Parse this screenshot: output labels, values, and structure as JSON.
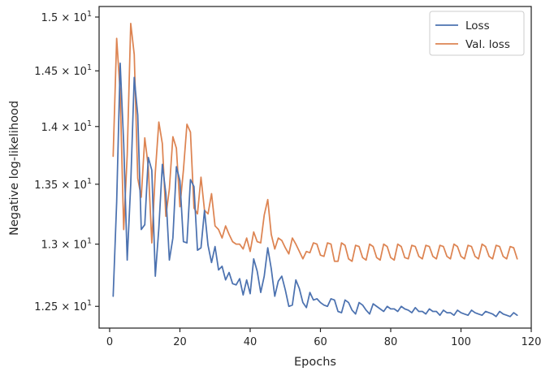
{
  "chart_data": {
    "type": "line",
    "xlabel": "Epochs",
    "ylabel": "Negative log-likelihood",
    "yscale": "log",
    "xlim": [
      -3,
      120
    ],
    "ylim": [
      12.33,
      15.1
    ],
    "xticks": [
      0,
      20,
      40,
      60,
      80,
      100,
      120
    ],
    "yticks": [
      12.5,
      13.0,
      13.5,
      14.0,
      14.5,
      15.0
    ],
    "ytick_labels": [
      "1.25 × 10",
      "1.3 × 10",
      "1.35 × 10",
      "1.4 × 10",
      "1.45 × 10",
      "1.5 × 10"
    ],
    "ytick_exponent": "1",
    "grid": false,
    "legend": "top-right",
    "x": [
      1,
      2,
      3,
      4,
      5,
      6,
      7,
      8,
      9,
      10,
      11,
      12,
      13,
      14,
      15,
      16,
      17,
      18,
      19,
      20,
      21,
      22,
      23,
      24,
      25,
      26,
      27,
      28,
      29,
      30,
      31,
      32,
      33,
      34,
      35,
      36,
      37,
      38,
      39,
      40,
      41,
      42,
      43,
      44,
      45,
      46,
      47,
      48,
      49,
      50,
      51,
      52,
      53,
      54,
      55,
      56,
      57,
      58,
      59,
      60,
      61,
      62,
      63,
      64,
      65,
      66,
      67,
      68,
      69,
      70,
      71,
      72,
      73,
      74,
      75,
      76,
      77,
      78,
      79,
      80,
      81,
      82,
      83,
      84,
      85,
      86,
      87,
      88,
      89,
      90,
      91,
      92,
      93,
      94,
      95,
      96,
      97,
      98,
      99,
      100,
      101,
      102,
      103,
      104,
      105,
      106,
      107,
      108,
      109,
      110,
      111,
      112,
      113,
      114,
      115,
      116
    ],
    "series": [
      {
        "name": "Loss",
        "color": "#4c72b0",
        "values": [
          12.58,
          13.35,
          14.57,
          13.85,
          12.87,
          13.5,
          14.44,
          14.1,
          13.12,
          13.16,
          13.73,
          13.62,
          12.74,
          13.13,
          13.67,
          13.42,
          12.87,
          13.05,
          13.65,
          13.53,
          13.02,
          13.01,
          13.54,
          13.48,
          12.95,
          12.97,
          13.28,
          12.99,
          12.85,
          12.98,
          12.79,
          12.82,
          12.71,
          12.77,
          12.68,
          12.67,
          12.72,
          12.59,
          12.71,
          12.6,
          12.88,
          12.78,
          12.61,
          12.74,
          12.97,
          12.8,
          12.58,
          12.7,
          12.74,
          12.63,
          12.5,
          12.51,
          12.71,
          12.64,
          12.53,
          12.49,
          12.61,
          12.55,
          12.56,
          12.53,
          12.51,
          12.5,
          12.56,
          12.55,
          12.46,
          12.45,
          12.55,
          12.53,
          12.47,
          12.44,
          12.53,
          12.51,
          12.47,
          12.44,
          12.52,
          12.5,
          12.48,
          12.46,
          12.5,
          12.48,
          12.48,
          12.46,
          12.5,
          12.48,
          12.47,
          12.45,
          12.49,
          12.46,
          12.46,
          12.44,
          12.48,
          12.46,
          12.46,
          12.43,
          12.47,
          12.45,
          12.45,
          12.43,
          12.47,
          12.45,
          12.44,
          12.43,
          12.47,
          12.45,
          12.44,
          12.43,
          12.46,
          12.45,
          12.44,
          12.42,
          12.46,
          12.44,
          12.43,
          12.42,
          12.45,
          12.43
        ]
      },
      {
        "name": "Val. loss",
        "color": "#dd8452",
        "values": [
          13.74,
          14.8,
          14.3,
          13.12,
          13.75,
          14.94,
          14.65,
          13.55,
          13.39,
          13.9,
          13.65,
          13.01,
          13.6,
          14.04,
          13.85,
          13.23,
          13.46,
          13.91,
          13.81,
          13.31,
          13.62,
          14.02,
          13.95,
          13.3,
          13.25,
          13.56,
          13.28,
          13.25,
          13.42,
          13.15,
          13.12,
          13.05,
          13.15,
          13.08,
          13.02,
          13.0,
          13.0,
          12.96,
          13.05,
          12.94,
          13.1,
          13.02,
          13.01,
          13.24,
          13.37,
          13.08,
          12.96,
          13.05,
          13.03,
          12.97,
          12.92,
          13.05,
          13.0,
          12.94,
          12.88,
          12.94,
          12.93,
          13.01,
          13.0,
          12.91,
          12.9,
          13.01,
          13.0,
          12.86,
          12.86,
          13.01,
          12.99,
          12.88,
          12.86,
          12.99,
          12.98,
          12.89,
          12.87,
          13.0,
          12.98,
          12.89,
          12.87,
          13.0,
          12.98,
          12.89,
          12.87,
          13.0,
          12.98,
          12.89,
          12.88,
          12.99,
          12.98,
          12.9,
          12.88,
          12.99,
          12.98,
          12.9,
          12.88,
          12.99,
          12.98,
          12.9,
          12.88,
          13.0,
          12.98,
          12.9,
          12.88,
          12.99,
          12.98,
          12.9,
          12.88,
          13.0,
          12.98,
          12.9,
          12.88,
          12.99,
          12.98,
          12.9,
          12.88,
          12.98,
          12.97,
          12.88
        ]
      }
    ]
  }
}
